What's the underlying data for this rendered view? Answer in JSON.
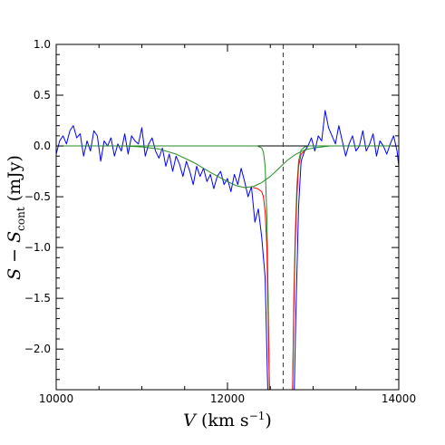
{
  "chart_data": {
    "type": "line",
    "xlabel": "V (km s−1)",
    "ylabel": "S − Scont (mJy)",
    "xlim": [
      10000,
      14000
    ],
    "ylim": [
      -2.4,
      1.0
    ],
    "x_ticks": [
      10000,
      12000,
      14000
    ],
    "x_tick_labels": [
      "10000",
      "12000",
      "14000"
    ],
    "y_ticks": [
      1.0,
      0.5,
      0.0,
      -0.5,
      -1.0,
      -1.5,
      -2.0
    ],
    "y_tick_labels": [
      "1.0",
      "0.5",
      "0.0",
      "−0.5",
      "−1.0",
      "−1.5",
      "−2.0"
    ],
    "grid": false,
    "reference_lines": [
      {
        "orientation": "horizontal",
        "y": 0.0,
        "style": "solid",
        "color": "#000000"
      },
      {
        "orientation": "vertical",
        "x": 12650,
        "style": "dashed",
        "color": "#333333"
      }
    ],
    "series": [
      {
        "color": "#0000ff",
        "x": [
          10000,
          10040,
          10080,
          10120,
          10160,
          10200,
          10240,
          10280,
          10320,
          10360,
          10400,
          10440,
          10480,
          10520,
          10560,
          10600,
          10640,
          10680,
          10720,
          10760,
          10800,
          10840,
          10880,
          10920,
          10960,
          11000,
          11040,
          11080,
          11120,
          11160,
          11200,
          11240,
          11280,
          11320,
          11360,
          11400,
          11440,
          11480,
          11520,
          11560,
          11600,
          11640,
          11680,
          11720,
          11760,
          11800,
          11840,
          11880,
          11920,
          11960,
          12000,
          12040,
          12080,
          12120,
          12160,
          12200,
          12240,
          12280,
          12320,
          12360,
          12400,
          12440,
          12470,
          12480,
          12780,
          12800,
          12830,
          12860,
          12900,
          12940,
          12980,
          13020,
          13060,
          13100,
          13140,
          13180,
          13220,
          13260,
          13300,
          13340,
          13380,
          13420,
          13460,
          13500,
          13540,
          13580,
          13620,
          13660,
          13700,
          13740,
          13780,
          13820,
          13860,
          13900,
          13940,
          13980,
          14000
        ],
        "y": [
          -0.08,
          0.05,
          0.1,
          0.02,
          0.15,
          0.2,
          0.08,
          0.12,
          -0.1,
          0.05,
          -0.05,
          0.15,
          0.1,
          -0.15,
          0.05,
          0.0,
          0.08,
          -0.1,
          0.02,
          -0.05,
          0.12,
          -0.08,
          0.1,
          0.05,
          0.02,
          0.18,
          -0.1,
          0.02,
          0.08,
          -0.05,
          -0.12,
          -0.02,
          -0.2,
          -0.08,
          -0.25,
          -0.1,
          -0.18,
          -0.3,
          -0.15,
          -0.25,
          -0.38,
          -0.2,
          -0.3,
          -0.22,
          -0.35,
          -0.28,
          -0.42,
          -0.3,
          -0.25,
          -0.38,
          -0.32,
          -0.45,
          -0.28,
          -0.38,
          -0.22,
          -0.35,
          -0.5,
          -0.4,
          -0.75,
          -0.62,
          -0.9,
          -1.3,
          -2.4,
          -2.4,
          -2.4,
          -1.6,
          -0.6,
          -0.15,
          -0.05,
          0.0,
          0.08,
          -0.05,
          0.1,
          0.05,
          0.35,
          0.18,
          0.1,
          0.02,
          0.2,
          0.05,
          -0.1,
          0.02,
          0.1,
          -0.05,
          0.0,
          0.15,
          -0.05,
          0.02,
          0.12,
          -0.1,
          0.05,
          0.0,
          -0.08,
          0.02,
          0.1,
          -0.05,
          -0.2
        ]
      },
      {
        "color": "#228b22",
        "x": [
          10000,
          10800,
          11000,
          11200,
          11400,
          11600,
          11800,
          12000,
          12100,
          12200,
          12300,
          12400,
          12500,
          12600,
          12700,
          12800,
          12900,
          13000,
          13100,
          13200,
          13400,
          14000
        ],
        "y": [
          0.0,
          0.0,
          -0.01,
          -0.03,
          -0.08,
          -0.16,
          -0.26,
          -0.35,
          -0.39,
          -0.41,
          -0.4,
          -0.36,
          -0.3,
          -0.22,
          -0.14,
          -0.08,
          -0.04,
          -0.02,
          -0.01,
          0.0,
          0.0,
          0.0
        ]
      },
      {
        "color": "#228b22",
        "x": [
          10000,
          12350,
          12400,
          12420,
          12440,
          12460,
          12475,
          12490,
          12760,
          12775,
          12790,
          12810,
          12830,
          12860,
          12900,
          12950,
          13000,
          14000
        ],
        "y": [
          0.0,
          0.0,
          -0.02,
          -0.06,
          -0.2,
          -0.7,
          -1.5,
          -2.4,
          -2.4,
          -1.5,
          -0.9,
          -0.4,
          -0.15,
          -0.04,
          -0.01,
          0.0,
          0.0,
          0.0
        ]
      },
      {
        "color": "#ff0000",
        "x": [
          12300,
          12350,
          12400,
          12420,
          12440,
          12460,
          12475,
          12490,
          12760,
          12775,
          12790,
          12810,
          12830,
          12860,
          12900
        ],
        "y": [
          -0.41,
          -0.42,
          -0.45,
          -0.5,
          -0.65,
          -1.0,
          -1.7,
          -2.4,
          -2.4,
          -1.6,
          -1.0,
          -0.5,
          -0.2,
          -0.08,
          -0.05
        ]
      }
    ]
  }
}
